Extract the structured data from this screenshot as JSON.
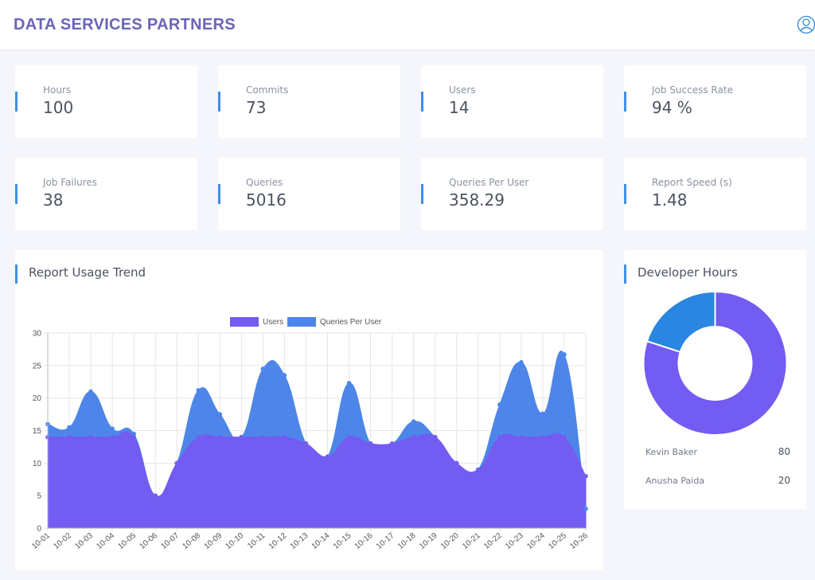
{
  "header": {
    "title": "DATA SERVICES PARTNERS",
    "avatar_icon": "user-avatar-icon"
  },
  "stats": [
    {
      "label": "Hours",
      "value": "100"
    },
    {
      "label": "Commits",
      "value": "73"
    },
    {
      "label": "Users",
      "value": "14"
    },
    {
      "label": "Job Success Rate",
      "value": "94 %"
    },
    {
      "label": "Job Failures",
      "value": "38"
    },
    {
      "label": "Queries",
      "value": "5016"
    },
    {
      "label": "Queries Per User",
      "value": "358.29"
    },
    {
      "label": "Report Speed (s)",
      "value": "1.48"
    }
  ],
  "trend": {
    "title": "Report Usage Trend",
    "chart_data": {
      "type": "area",
      "title": "",
      "xlabel": "",
      "ylabel": "",
      "ylim": [
        0,
        30
      ],
      "yticks": [
        0,
        5,
        10,
        15,
        20,
        25,
        30
      ],
      "legend": "top-center",
      "categories": [
        "10-01",
        "10-02",
        "10-03",
        "10-04",
        "10-05",
        "10-06",
        "10-07",
        "10-08",
        "10-09",
        "10-10",
        "10-11",
        "10-12",
        "10-13",
        "10-14",
        "10-15",
        "10-16",
        "10-17",
        "10-18",
        "10-19",
        "10-20",
        "10-21",
        "10-22",
        "10-23",
        "10-24",
        "10-25",
        "10-26"
      ],
      "series": [
        {
          "name": "Users",
          "color": "#735cf2",
          "values": [
            14,
            14,
            14,
            14,
            14,
            5,
            10,
            14,
            14,
            14,
            14,
            14,
            13,
            11,
            14,
            13,
            13,
            14,
            14,
            10,
            9,
            14,
            14,
            14,
            14,
            8
          ]
        },
        {
          "name": "Queries Per User",
          "color": "#4d86e8",
          "values": [
            16,
            15.5,
            21,
            15.3,
            14.5,
            5,
            10,
            21.2,
            17.5,
            14,
            24.5,
            23.5,
            13,
            11,
            22.3,
            13,
            13,
            16.4,
            14,
            10,
            9,
            19,
            25.5,
            17.6,
            26.7,
            3
          ]
        }
      ]
    }
  },
  "developer": {
    "title": "Developer Hours",
    "chart_data": {
      "type": "pie",
      "labels": [
        "Kevin Baker",
        "Anusha Paida"
      ],
      "values": [
        80,
        20
      ],
      "colors": [
        "#735cf2",
        "#2a86e0"
      ]
    },
    "rows": [
      {
        "name": "Kevin Baker",
        "value": "80"
      },
      {
        "name": "Anusha Paida",
        "value": "20"
      }
    ]
  }
}
